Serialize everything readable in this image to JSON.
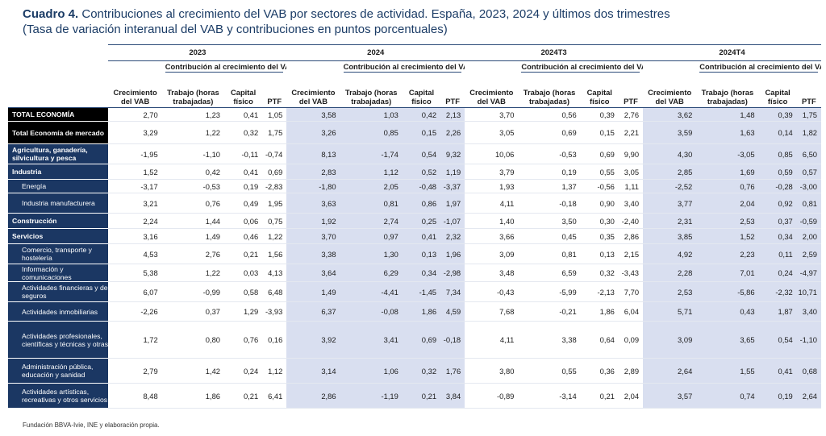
{
  "title": {
    "bold": "Cuadro 4.",
    "main": "Contribuciones al crecimiento del VAB por sectores de actividad. España, 2023, 2024 y últimos dos trimestres",
    "subtitle": "(Tasa de variación interanual del VAB y contribuciones en puntos porcentuales)"
  },
  "periods": [
    "2023",
    "2024",
    "2024T3",
    "2024T4"
  ],
  "header": {
    "growth": "Crecimiento del VAB",
    "contribution_group": "Contribución al crecimiento del VAB (pp)",
    "labor": "Trabajo (horas trabajadas)",
    "capital": "Capital físico",
    "ptf": "PTF"
  },
  "rows": [
    {
      "label": "TOTAL ECONOMÍA",
      "style": "total",
      "values": [
        "2,70",
        "1,23",
        "0,41",
        "1,05",
        "3,58",
        "1,03",
        "0,42",
        "2,13",
        "3,70",
        "0,56",
        "0,39",
        "2,76",
        "3,62",
        "1,48",
        "0,39",
        "1,75"
      ]
    },
    {
      "label": "Total Economía de mercado",
      "style": "total",
      "values": [
        "3,29",
        "1,22",
        "0,32",
        "1,75",
        "3,26",
        "0,85",
        "0,15",
        "2,26",
        "3,05",
        "0,69",
        "0,15",
        "2,21",
        "3,59",
        "1,63",
        "0,14",
        "1,82"
      ]
    },
    {
      "label": "Agricultura, ganadería, silvicultura y pesca",
      "style": "bold",
      "values": [
        "-1,95",
        "-1,10",
        "-0,11",
        "-0,74",
        "8,13",
        "-1,74",
        "0,54",
        "9,32",
        "10,06",
        "-0,53",
        "0,69",
        "9,90",
        "4,30",
        "-3,05",
        "0,85",
        "6,50"
      ]
    },
    {
      "label": "Industria",
      "style": "bold",
      "values": [
        "1,52",
        "0,42",
        "0,41",
        "0,69",
        "2,83",
        "1,12",
        "0,52",
        "1,19",
        "3,79",
        "0,19",
        "0,55",
        "3,05",
        "2,85",
        "1,69",
        "0,59",
        "0,57"
      ]
    },
    {
      "label": "Energía",
      "style": "indent",
      "values": [
        "-3,17",
        "-0,53",
        "0,19",
        "-2,83",
        "-1,80",
        "2,05",
        "-0,48",
        "-3,37",
        "1,93",
        "1,37",
        "-0,56",
        "1,11",
        "-2,52",
        "0,76",
        "-0,28",
        "-3,00"
      ]
    },
    {
      "label": "Industria manufacturera",
      "style": "indent",
      "values": [
        "3,21",
        "0,76",
        "0,49",
        "1,95",
        "3,63",
        "0,81",
        "0,86",
        "1,97",
        "4,11",
        "-0,18",
        "0,90",
        "3,40",
        "3,77",
        "2,04",
        "0,92",
        "0,81"
      ]
    },
    {
      "label": "Construcción",
      "style": "bold",
      "values": [
        "2,24",
        "1,44",
        "0,06",
        "0,75",
        "1,92",
        "2,74",
        "0,25",
        "-1,07",
        "1,40",
        "3,50",
        "0,30",
        "-2,40",
        "2,31",
        "2,53",
        "0,37",
        "-0,59"
      ]
    },
    {
      "label": "Servicios",
      "style": "bold",
      "values": [
        "3,16",
        "1,49",
        "0,46",
        "1,22",
        "3,70",
        "0,97",
        "0,41",
        "2,32",
        "3,66",
        "0,45",
        "0,35",
        "2,86",
        "3,85",
        "1,52",
        "0,34",
        "2,00"
      ]
    },
    {
      "label": "Comercio, transporte y hostelería",
      "style": "indent",
      "values": [
        "4,53",
        "2,76",
        "0,21",
        "1,56",
        "3,38",
        "1,30",
        "0,13",
        "1,96",
        "3,09",
        "0,81",
        "0,13",
        "2,15",
        "4,92",
        "2,23",
        "0,11",
        "2,59"
      ]
    },
    {
      "label": "Información y comunicaciones",
      "style": "indent",
      "values": [
        "5,38",
        "1,22",
        "0,03",
        "4,13",
        "3,64",
        "6,29",
        "0,34",
        "-2,98",
        "3,48",
        "6,59",
        "0,32",
        "-3,43",
        "2,28",
        "7,01",
        "0,24",
        "-4,97"
      ]
    },
    {
      "label": "Actividades financieras y de seguros",
      "style": "indent",
      "values": [
        "6,07",
        "-0,99",
        "0,58",
        "6,48",
        "1,49",
        "-4,41",
        "-1,45",
        "7,34",
        "-0,43",
        "-5,99",
        "-2,13",
        "7,70",
        "2,53",
        "-5,86",
        "-2,32",
        "10,71"
      ]
    },
    {
      "label": "Actividades inmobiliarias",
      "style": "indent",
      "values": [
        "-2,26",
        "0,37",
        "1,29",
        "-3,93",
        "6,37",
        "-0,08",
        "1,86",
        "4,59",
        "7,68",
        "-0,21",
        "1,86",
        "6,04",
        "5,71",
        "0,43",
        "1,87",
        "3,40"
      ]
    },
    {
      "label": "Actividades profesionales, científicas y técnicas y otras",
      "style": "indent",
      "values": [
        "1,72",
        "0,80",
        "0,76",
        "0,16",
        "3,92",
        "3,41",
        "0,69",
        "-0,18",
        "4,11",
        "3,38",
        "0,64",
        "0,09",
        "3,09",
        "3,65",
        "0,54",
        "-1,10"
      ]
    },
    {
      "label": "Administración pública, educación y sanidad",
      "style": "indent",
      "values": [
        "2,79",
        "1,42",
        "0,24",
        "1,12",
        "3,14",
        "1,06",
        "0,32",
        "1,76",
        "3,80",
        "0,55",
        "0,36",
        "2,89",
        "2,64",
        "1,55",
        "0,41",
        "0,68"
      ]
    },
    {
      "label": "Actividades artísticas, recreativas y otros servicios",
      "style": "indent",
      "values": [
        "8,48",
        "1,86",
        "0,21",
        "6,41",
        "2,86",
        "-1,19",
        "0,21",
        "3,84",
        "-0,89",
        "-3,14",
        "0,21",
        "2,04",
        "3,57",
        "0,74",
        "0,19",
        "2,64"
      ]
    }
  ],
  "source": "Fundación BBVA-Ivie, INE y elaboración propia."
}
